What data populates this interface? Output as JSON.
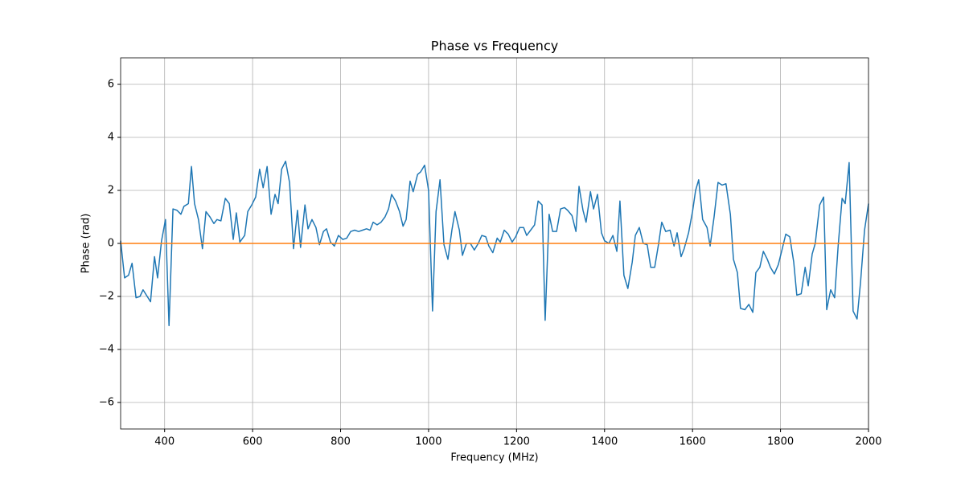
{
  "chart_data": {
    "type": "line",
    "title": "Phase vs Frequency",
    "x_label": "Frequency (MHz)",
    "y_label": "Phase (rad)",
    "xlim": [
      300,
      2000
    ],
    "ylim": [
      -7,
      7
    ],
    "grid": true,
    "xticks": [
      400,
      600,
      800,
      1000,
      1200,
      1400,
      1600,
      1800,
      2000
    ],
    "yticks": [
      {
        "value": -6,
        "label": "−6"
      },
      {
        "value": -4,
        "label": "−4"
      },
      {
        "value": -2,
        "label": "−2"
      },
      0,
      2,
      4,
      6
    ],
    "series": [
      {
        "color": "#1f77b4",
        "x": [
          300,
          309,
          318,
          326,
          335,
          344,
          351,
          368,
          377,
          384,
          393,
          402,
          410,
          419,
          428,
          437,
          444,
          454,
          461,
          468,
          477,
          486,
          494,
          503,
          512,
          519,
          528,
          538,
          547,
          556,
          563,
          571,
          582,
          589,
          598,
          607,
          616,
          624,
          633,
          642,
          651,
          658,
          666,
          675,
          684,
          693,
          702,
          709,
          719,
          726,
          735,
          744,
          752,
          761,
          768,
          777,
          786,
          795,
          805,
          814,
          823,
          832,
          841,
          850,
          859,
          867,
          874,
          883,
          892,
          901,
          909,
          916,
          925,
          934,
          942,
          949,
          958,
          965,
          975,
          982,
          991,
          1000,
          1009,
          1017,
          1026,
          1035,
          1044,
          1053,
          1060,
          1070,
          1077,
          1086,
          1095,
          1104,
          1113,
          1121,
          1130,
          1137,
          1146,
          1156,
          1163,
          1172,
          1181,
          1190,
          1198,
          1207,
          1216,
          1223,
          1232,
          1241,
          1249,
          1258,
          1265,
          1274,
          1282,
          1291,
          1300,
          1309,
          1316,
          1326,
          1335,
          1342,
          1351,
          1358,
          1368,
          1375,
          1384,
          1393,
          1400,
          1410,
          1419,
          1428,
          1435,
          1444,
          1453,
          1463,
          1470,
          1479,
          1488,
          1497,
          1505,
          1514,
          1523,
          1530,
          1539,
          1549,
          1558,
          1565,
          1574,
          1581,
          1591,
          1600,
          1607,
          1614,
          1623,
          1633,
          1640,
          1649,
          1658,
          1667,
          1676,
          1686,
          1693,
          1702,
          1709,
          1719,
          1728,
          1737,
          1744,
          1753,
          1761,
          1770,
          1777,
          1786,
          1795,
          1804,
          1812,
          1821,
          1830,
          1837,
          1847,
          1856,
          1863,
          1872,
          1879,
          1889,
          1898,
          1905,
          1914,
          1923,
          1931,
          1940,
          1947,
          1956,
          1965,
          1974,
          1982,
          1991,
          2000
        ],
        "values": [
          0.1,
          -1.3,
          -1.2,
          -0.75,
          -2.05,
          -2.0,
          -1.75,
          -2.2,
          -0.5,
          -1.3,
          0.1,
          0.9,
          -3.1,
          1.3,
          1.25,
          1.1,
          1.4,
          1.5,
          2.9,
          1.5,
          0.9,
          -0.2,
          1.2,
          1.0,
          0.75,
          0.9,
          0.85,
          1.7,
          1.5,
          0.15,
          1.15,
          0.05,
          0.3,
          1.2,
          1.45,
          1.75,
          2.8,
          2.1,
          2.9,
          1.1,
          1.85,
          1.5,
          2.8,
          3.1,
          2.3,
          -0.2,
          1.25,
          -0.15,
          1.45,
          0.55,
          0.9,
          0.6,
          -0.05,
          0.45,
          0.55,
          0.05,
          -0.1,
          0.3,
          0.15,
          0.2,
          0.45,
          0.5,
          0.45,
          0.5,
          0.55,
          0.5,
          0.8,
          0.7,
          0.8,
          1.0,
          1.3,
          1.85,
          1.6,
          1.2,
          0.65,
          0.9,
          2.35,
          1.95,
          2.6,
          2.7,
          2.95,
          2.0,
          -2.55,
          1.2,
          2.4,
          -0.05,
          -0.6,
          0.5,
          1.2,
          0.5,
          -0.45,
          0.0,
          0.0,
          -0.25,
          0.0,
          0.3,
          0.25,
          -0.1,
          -0.35,
          0.2,
          0.05,
          0.5,
          0.35,
          0.05,
          0.25,
          0.6,
          0.6,
          0.3,
          0.5,
          0.7,
          1.6,
          1.45,
          -2.9,
          1.1,
          0.45,
          0.45,
          1.3,
          1.35,
          1.25,
          1.05,
          0.45,
          2.15,
          1.25,
          0.8,
          1.95,
          1.3,
          1.85,
          0.4,
          0.1,
          0.0,
          0.3,
          -0.3,
          1.6,
          -1.2,
          -1.7,
          -0.7,
          0.3,
          0.6,
          0.0,
          -0.05,
          -0.9,
          -0.9,
          0.0,
          0.8,
          0.45,
          0.5,
          -0.1,
          0.4,
          -0.5,
          -0.2,
          0.4,
          1.2,
          2.0,
          2.4,
          0.9,
          0.6,
          -0.1,
          1.0,
          2.3,
          2.2,
          2.25,
          1.1,
          -0.6,
          -1.1,
          -2.45,
          -2.5,
          -2.3,
          -2.6,
          -1.1,
          -0.9,
          -0.3,
          -0.6,
          -0.9,
          -1.15,
          -0.8,
          -0.2,
          0.35,
          0.25,
          -0.7,
          -1.95,
          -1.9,
          -0.9,
          -1.6,
          -0.4,
          0.0,
          1.45,
          1.75,
          -2.5,
          -1.75,
          -2.05,
          -0.1,
          1.7,
          1.5,
          3.05,
          -2.55,
          -2.85,
          -1.45,
          0.5,
          1.5
        ]
      },
      {
        "color": "#ff7f0e",
        "x": [
          300,
          2000
        ],
        "values": [
          0,
          0
        ]
      }
    ]
  }
}
